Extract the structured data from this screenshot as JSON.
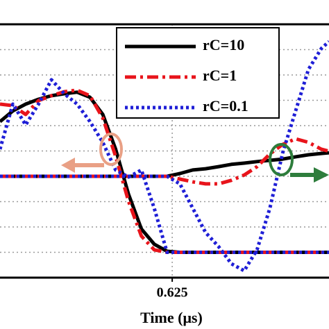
{
  "chart_data": {
    "type": "line",
    "xlabel": "Time (μs)",
    "xlim": [
      0.29,
      0.93
    ],
    "xticks": [
      0.625
    ],
    "ylim": [
      0,
      10
    ],
    "ygrid": [
      1,
      2,
      3,
      4,
      5,
      6,
      7,
      8,
      9
    ],
    "grid": true,
    "x": [
      0.29,
      0.315,
      0.34,
      0.365,
      0.39,
      0.415,
      0.44,
      0.465,
      0.49,
      0.515,
      0.54,
      0.565,
      0.59,
      0.615,
      0.64,
      0.665,
      0.69,
      0.715,
      0.74,
      0.765,
      0.79,
      0.815,
      0.84,
      0.865,
      0.89,
      0.915,
      0.93
    ],
    "series": [
      {
        "name": "rC=10",
        "color": "#000000",
        "style": "solid",
        "values": [
          6.16,
          6.58,
          6.85,
          7.04,
          7.18,
          7.26,
          7.32,
          7.12,
          6.44,
          5.07,
          3.29,
          1.92,
          1.32,
          1.04,
          1.0,
          1.0,
          1.0,
          1.0,
          1.0,
          1.0,
          1.0,
          1.0,
          1.0,
          1.0,
          1.0,
          1.0,
          1.0
        ],
        "values_right": [
          4.0,
          4.0,
          4.0,
          4.0,
          4.0,
          4.0,
          4.0,
          4.0,
          4.0,
          4.0,
          4.0,
          4.0,
          4.0,
          4.0,
          4.11,
          4.25,
          4.3,
          4.38,
          4.47,
          4.52,
          4.58,
          4.63,
          4.68,
          4.77,
          4.85,
          4.9,
          4.93
        ]
      },
      {
        "name": "rC=1",
        "color": "#e8141b",
        "style": "dashdot",
        "values": [
          6.85,
          6.79,
          6.44,
          6.99,
          7.18,
          7.34,
          7.4,
          7.18,
          6.3,
          4.79,
          3.01,
          1.64,
          1.1,
          1.0,
          1.0,
          1.0,
          1.0,
          1.0,
          1.0,
          1.0,
          1.0,
          1.0,
          1.0,
          1.0,
          1.0,
          1.0,
          1.0
        ],
        "values_right": [
          4.0,
          4.0,
          4.0,
          4.0,
          4.0,
          4.0,
          4.0,
          4.0,
          4.0,
          4.0,
          4.0,
          4.0,
          4.0,
          4.0,
          3.89,
          3.78,
          3.7,
          3.7,
          3.84,
          4.05,
          4.38,
          4.88,
          5.26,
          5.48,
          5.34,
          5.07,
          4.99
        ]
      },
      {
        "name": "rC=0.1",
        "color": "#1f1fd6",
        "style": "dotted",
        "values": [
          5.07,
          6.85,
          6.03,
          6.85,
          7.81,
          7.26,
          6.85,
          6.16,
          5.34,
          4.25,
          3.97,
          4.25,
          2.74,
          1.0,
          1.0,
          1.0,
          1.0,
          1.0,
          1.0,
          1.0,
          1.0,
          1.0,
          1.0,
          1.0,
          1.0,
          1.0,
          1.0
        ],
        "values_right": [
          4.0,
          4.0,
          4.0,
          4.0,
          4.0,
          4.0,
          4.0,
          4.0,
          4.0,
          4.0,
          4.0,
          4.0,
          4.0,
          4.0,
          3.7,
          2.74,
          1.78,
          1.23,
          0.55,
          0.27,
          1.1,
          2.74,
          4.93,
          6.58,
          8.22,
          9.04,
          9.32
        ]
      }
    ]
  }
}
